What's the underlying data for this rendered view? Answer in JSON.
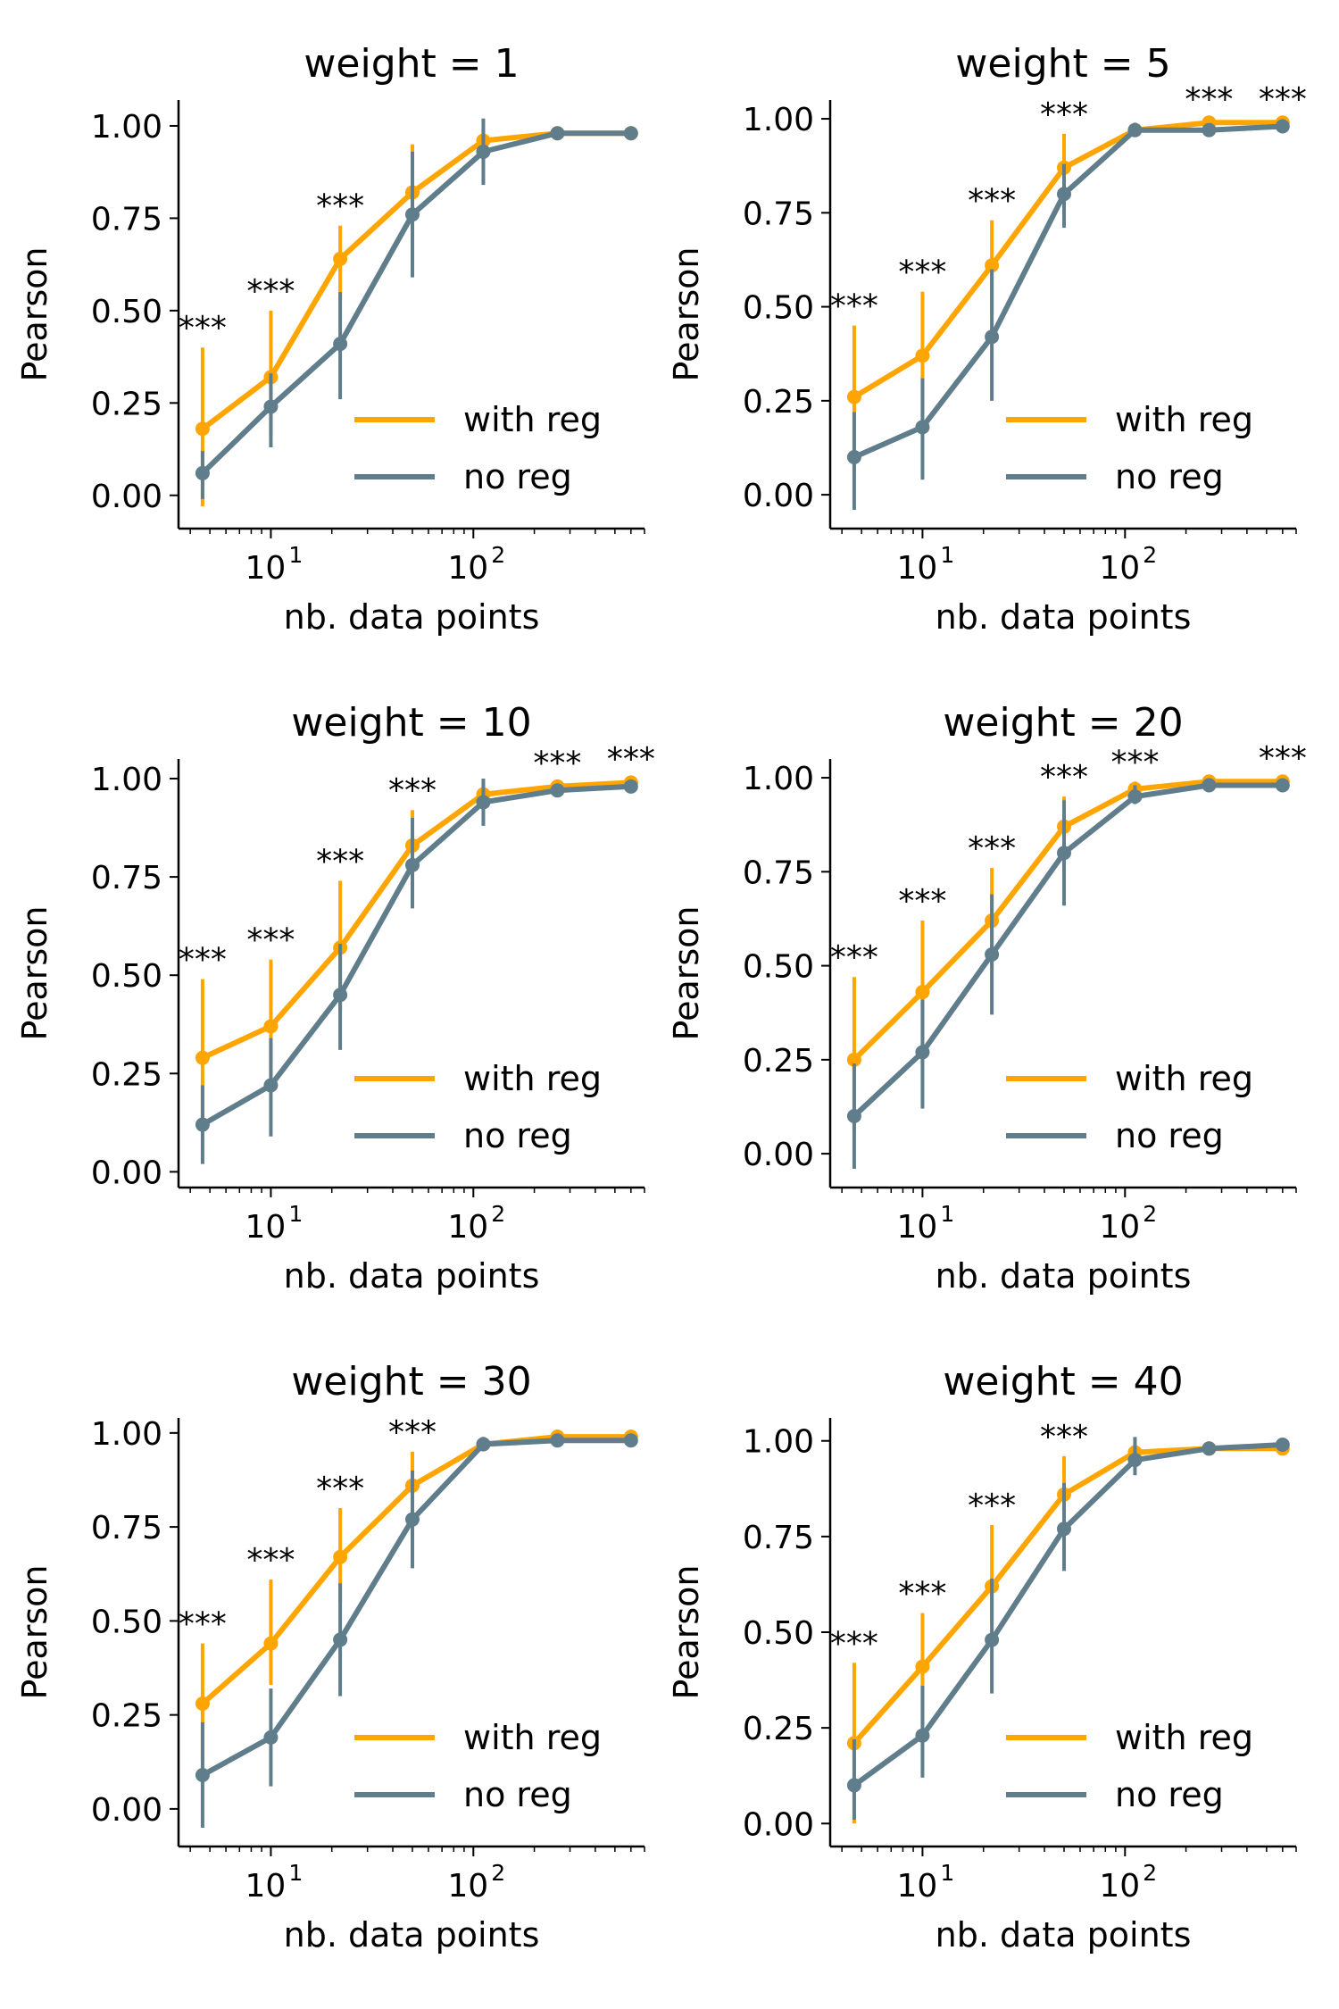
{
  "figure": {
    "colors": {
      "with_reg": "#FFA500",
      "no_reg": "#607D8B",
      "axis": "#000000"
    }
  },
  "chart_data": [
    {
      "type": "line",
      "title": "weight = 1",
      "xlabel": "nb. data points",
      "ylabel": "Pearson",
      "xscale": "log",
      "xlim": [
        3.5,
        700
      ],
      "ylim": [
        -0.09,
        1.07
      ],
      "yticks": [
        "0.00",
        "0.25",
        "0.50",
        "0.75",
        "1.00"
      ],
      "xticks": [
        "10",
        "10"
      ],
      "xtick_exponents": [
        "1",
        "2"
      ],
      "x": [
        4.6,
        10,
        22,
        50,
        112,
        260,
        600
      ],
      "significance": [
        "***",
        "***",
        "***",
        "",
        "",
        "",
        ""
      ],
      "legend_position": "lower right",
      "series": [
        {
          "name": "with reg",
          "values": [
            0.18,
            0.32,
            0.64,
            0.82,
            0.96,
            0.98,
            0.98
          ],
          "err_low": [
            -0.03,
            0.16,
            0.53,
            0.72,
            0.93,
            0.97,
            0.97
          ],
          "err_high": [
            0.4,
            0.5,
            0.73,
            0.95,
            0.99,
            0.99,
            0.99
          ]
        },
        {
          "name": "no reg",
          "values": [
            0.06,
            0.24,
            0.41,
            0.76,
            0.93,
            0.98,
            0.98
          ],
          "err_low": [
            -0.01,
            0.13,
            0.26,
            0.59,
            0.84,
            0.97,
            0.97
          ],
          "err_high": [
            0.12,
            0.33,
            0.55,
            0.93,
            1.02,
            0.99,
            0.99
          ]
        }
      ]
    },
    {
      "type": "line",
      "title": "weight = 5",
      "xlabel": "nb. data points",
      "ylabel": "Pearson",
      "xscale": "log",
      "xlim": [
        3.5,
        700
      ],
      "ylim": [
        -0.09,
        1.05
      ],
      "yticks": [
        "0.00",
        "0.25",
        "0.50",
        "0.75",
        "1.00"
      ],
      "xticks": [
        "10",
        "10"
      ],
      "xtick_exponents": [
        "1",
        "2"
      ],
      "x": [
        4.6,
        10,
        22,
        50,
        112,
        260,
        600
      ],
      "significance": [
        "***",
        "***",
        "***",
        "***",
        "",
        "***",
        "***"
      ],
      "legend_position": "lower right",
      "series": [
        {
          "name": "with reg",
          "values": [
            0.26,
            0.37,
            0.61,
            0.87,
            0.97,
            0.99,
            0.99
          ],
          "err_low": [
            0.06,
            0.21,
            0.48,
            0.78,
            0.96,
            0.98,
            0.98
          ],
          "err_high": [
            0.45,
            0.54,
            0.73,
            0.96,
            0.99,
            1.0,
            1.0
          ]
        },
        {
          "name": "no reg",
          "values": [
            0.1,
            0.18,
            0.42,
            0.8,
            0.97,
            0.97,
            0.98
          ],
          "err_low": [
            -0.04,
            0.04,
            0.25,
            0.71,
            0.96,
            0.96,
            0.97
          ],
          "err_high": [
            0.22,
            0.31,
            0.6,
            0.88,
            0.98,
            0.98,
            0.99
          ]
        }
      ]
    },
    {
      "type": "line",
      "title": "weight = 10",
      "xlabel": "nb. data points",
      "ylabel": "Pearson",
      "xscale": "log",
      "xlim": [
        3.5,
        700
      ],
      "ylim": [
        -0.04,
        1.05
      ],
      "yticks": [
        "0.00",
        "0.25",
        "0.50",
        "0.75",
        "1.00"
      ],
      "xticks": [
        "10",
        "10"
      ],
      "xtick_exponents": [
        "1",
        "2"
      ],
      "x": [
        4.6,
        10,
        22,
        50,
        112,
        260,
        600
      ],
      "significance": [
        "***",
        "***",
        "***",
        "***",
        "",
        "***",
        "***"
      ],
      "legend_position": "lower right",
      "series": [
        {
          "name": "with reg",
          "values": [
            0.29,
            0.37,
            0.57,
            0.83,
            0.96,
            0.98,
            0.99
          ],
          "err_low": [
            0.12,
            0.21,
            0.41,
            0.74,
            0.94,
            0.97,
            0.98
          ],
          "err_high": [
            0.49,
            0.54,
            0.74,
            0.92,
            0.99,
            0.99,
            1.0
          ]
        },
        {
          "name": "no reg",
          "values": [
            0.12,
            0.22,
            0.45,
            0.78,
            0.94,
            0.97,
            0.98
          ],
          "err_low": [
            0.02,
            0.09,
            0.31,
            0.67,
            0.88,
            0.96,
            0.97
          ],
          "err_high": [
            0.22,
            0.34,
            0.58,
            0.9,
            1.0,
            0.98,
            0.99
          ]
        }
      ]
    },
    {
      "type": "line",
      "title": "weight = 20",
      "xlabel": "nb. data points",
      "ylabel": "Pearson",
      "xscale": "log",
      "xlim": [
        3.5,
        700
      ],
      "ylim": [
        -0.09,
        1.05
      ],
      "yticks": [
        "0.00",
        "0.25",
        "0.50",
        "0.75",
        "1.00"
      ],
      "xticks": [
        "10",
        "10"
      ],
      "xtick_exponents": [
        "1",
        "2"
      ],
      "x": [
        4.6,
        10,
        22,
        50,
        112,
        260,
        600
      ],
      "significance": [
        "***",
        "***",
        "***",
        "***",
        "***",
        "",
        "***"
      ],
      "legend_position": "lower right",
      "series": [
        {
          "name": "with reg",
          "values": [
            0.25,
            0.43,
            0.62,
            0.87,
            0.97,
            0.99,
            0.99
          ],
          "err_low": [
            0.06,
            0.24,
            0.49,
            0.8,
            0.96,
            0.98,
            0.98
          ],
          "err_high": [
            0.47,
            0.62,
            0.76,
            0.95,
            0.99,
            1.0,
            1.0
          ]
        },
        {
          "name": "no reg",
          "values": [
            0.1,
            0.27,
            0.53,
            0.8,
            0.95,
            0.98,
            0.98
          ],
          "err_low": [
            -0.04,
            0.12,
            0.37,
            0.66,
            0.93,
            0.97,
            0.97
          ],
          "err_high": [
            0.24,
            0.41,
            0.69,
            0.94,
            0.98,
            0.99,
            0.99
          ]
        }
      ]
    },
    {
      "type": "line",
      "title": "weight = 30",
      "xlabel": "nb. data points",
      "ylabel": "Pearson",
      "xscale": "log",
      "xlim": [
        3.5,
        700
      ],
      "ylim": [
        -0.1,
        1.04
      ],
      "yticks": [
        "0.00",
        "0.25",
        "0.50",
        "0.75",
        "1.00"
      ],
      "xticks": [
        "10",
        "10"
      ],
      "xtick_exponents": [
        "1",
        "2"
      ],
      "x": [
        4.6,
        10,
        22,
        50,
        112,
        260,
        600
      ],
      "significance": [
        "***",
        "***",
        "***",
        "***",
        "",
        "",
        ""
      ],
      "legend_position": "lower right",
      "series": [
        {
          "name": "with reg",
          "values": [
            0.28,
            0.44,
            0.67,
            0.86,
            0.97,
            0.99,
            0.99
          ],
          "err_low": [
            0.13,
            0.33,
            0.55,
            0.8,
            0.96,
            0.98,
            0.98
          ],
          "err_high": [
            0.44,
            0.61,
            0.8,
            0.95,
            0.99,
            1.0,
            1.0
          ]
        },
        {
          "name": "no reg",
          "values": [
            0.09,
            0.19,
            0.45,
            0.77,
            0.97,
            0.98,
            0.98
          ],
          "err_low": [
            -0.05,
            0.06,
            0.3,
            0.64,
            0.96,
            0.97,
            0.97
          ],
          "err_high": [
            0.23,
            0.32,
            0.6,
            0.9,
            0.98,
            0.99,
            0.99
          ]
        }
      ]
    },
    {
      "type": "line",
      "title": "weight = 40",
      "xlabel": "nb. data points",
      "ylabel": "Pearson",
      "xscale": "log",
      "xlim": [
        3.5,
        700
      ],
      "ylim": [
        -0.06,
        1.06
      ],
      "yticks": [
        "0.00",
        "0.25",
        "0.50",
        "0.75",
        "1.00"
      ],
      "xticks": [
        "10",
        "10"
      ],
      "xtick_exponents": [
        "1",
        "2"
      ],
      "x": [
        4.6,
        10,
        22,
        50,
        112,
        260,
        600
      ],
      "significance": [
        "***",
        "***",
        "***",
        "***",
        "",
        "",
        ""
      ],
      "legend_position": "lower right",
      "series": [
        {
          "name": "with reg",
          "values": [
            0.21,
            0.41,
            0.62,
            0.86,
            0.97,
            0.98,
            0.98
          ],
          "err_low": [
            0.0,
            0.26,
            0.52,
            0.74,
            0.96,
            0.97,
            0.97
          ],
          "err_high": [
            0.42,
            0.55,
            0.78,
            0.96,
            0.99,
            0.99,
            0.99
          ]
        },
        {
          "name": "no reg",
          "values": [
            0.1,
            0.23,
            0.48,
            0.77,
            0.95,
            0.98,
            0.99
          ],
          "err_low": [
            0.01,
            0.12,
            0.34,
            0.66,
            0.91,
            0.97,
            0.98
          ],
          "err_high": [
            0.22,
            0.36,
            0.64,
            0.89,
            1.01,
            0.99,
            1.0
          ]
        }
      ]
    }
  ]
}
